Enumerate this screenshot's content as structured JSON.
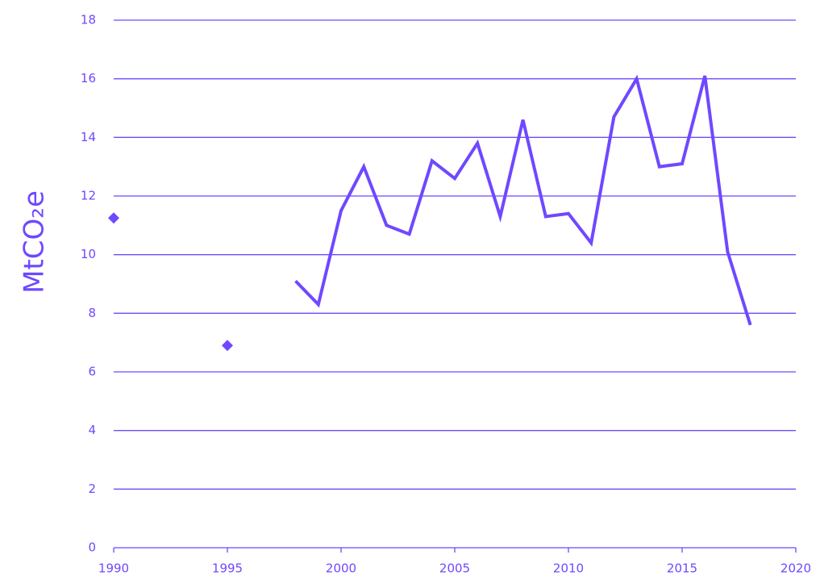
{
  "chart_data": {
    "type": "line",
    "y_label": "MtCO₂e",
    "x": [
      1990,
      1991,
      1992,
      1993,
      1994,
      1995,
      1996,
      1997,
      1998,
      1999,
      2000,
      2001,
      2002,
      2003,
      2004,
      2005,
      2006,
      2007,
      2008,
      2009,
      2010,
      2011,
      2012,
      2013,
      2014,
      2015,
      2016,
      2017,
      2018
    ],
    "series": [
      {
        "color": "#7048ff",
        "values": [
          11.25,
          null,
          null,
          null,
          null,
          6.9,
          null,
          null,
          9.1,
          8.3,
          11.5,
          13.0,
          11.0,
          10.7,
          13.2,
          12.6,
          13.8,
          11.3,
          14.6,
          11.3,
          11.4,
          10.4,
          14.7,
          16.0,
          13.0,
          13.1,
          16.1,
          10.1,
          7.6
        ]
      }
    ],
    "xlim": [
      1990,
      2020
    ],
    "xticks": [
      1990,
      1995,
      2000,
      2005,
      2010,
      2015,
      2020
    ],
    "ylim": [
      0,
      18
    ],
    "yticks": [
      0,
      2,
      4,
      6,
      8,
      10,
      12,
      14,
      16,
      18
    ],
    "grid": true
  }
}
